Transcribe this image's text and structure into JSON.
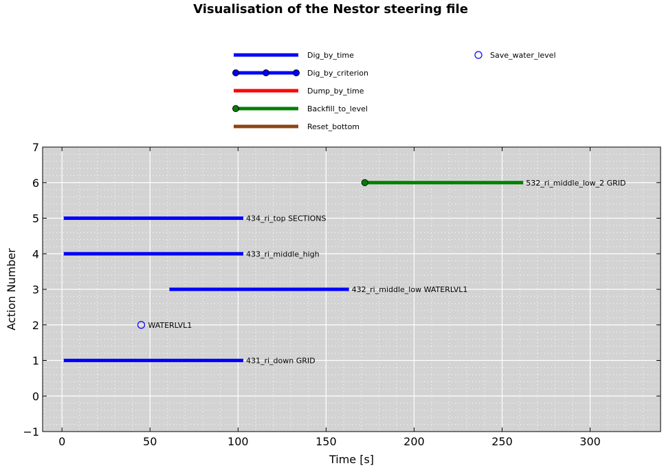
{
  "chart_data": {
    "type": "line",
    "title": "Visualisation of the Nestor steering file",
    "xlabel": "Time [s]",
    "ylabel": "Action Number",
    "xlim": [
      -11,
      340
    ],
    "ylim": [
      -1,
      7
    ],
    "x_ticks": [
      0,
      50,
      100,
      150,
      200,
      250,
      300
    ],
    "x_tick_labels": [
      "0",
      "50",
      "100",
      "150",
      "200",
      "250",
      "300"
    ],
    "y_ticks": [
      -1,
      0,
      1,
      2,
      3,
      4,
      5,
      6,
      7
    ],
    "y_tick_labels": [
      "−1",
      "0",
      "1",
      "2",
      "3",
      "4",
      "5",
      "6",
      "7"
    ],
    "grid": true,
    "background": "#d3d3d3",
    "legend": {
      "placement": "above-plot",
      "entries": [
        {
          "label": "Dig_by_time",
          "color": "#0000ff",
          "marker": "none",
          "style": "line"
        },
        {
          "label": "Dig_by_criterion",
          "color": "#0000ff",
          "marker": "circle",
          "style": "line"
        },
        {
          "label": "Dump_by_time",
          "color": "#ff0000",
          "marker": "none",
          "style": "line"
        },
        {
          "label": "Backfill_to_level",
          "color": "#008000",
          "marker": "circle",
          "style": "line"
        },
        {
          "label": "Reset_bottom",
          "color": "#8b4513",
          "marker": "none",
          "style": "line"
        },
        {
          "label": "Save_water_level",
          "color": "#0000ff",
          "marker": "open-circle",
          "style": "marker"
        }
      ]
    },
    "series": [
      {
        "action": 1,
        "x_start": 1,
        "x_end": 103,
        "color": "#0000ff",
        "start_marker": false,
        "label": "431_ri_down   GRID"
      },
      {
        "action": 2,
        "x": 45,
        "color": "#0000ff",
        "marker": "open-circle",
        "label": "WATERLVL1"
      },
      {
        "action": 3,
        "x_start": 61,
        "x_end": 163,
        "color": "#0000ff",
        "start_marker": false,
        "label": "432_ri_middle_low   WATERLVL1"
      },
      {
        "action": 4,
        "x_start": 1,
        "x_end": 103,
        "color": "#0000ff",
        "start_marker": false,
        "label": "433_ri_middle_high"
      },
      {
        "action": 5,
        "x_start": 1,
        "x_end": 103,
        "color": "#0000ff",
        "start_marker": false,
        "label": "434_ri_top   SECTIONS"
      },
      {
        "action": 6,
        "x_start": 172,
        "x_end": 262,
        "color": "#008000",
        "start_marker": true,
        "label": "532_ri_middle_low_2   GRID"
      }
    ]
  }
}
